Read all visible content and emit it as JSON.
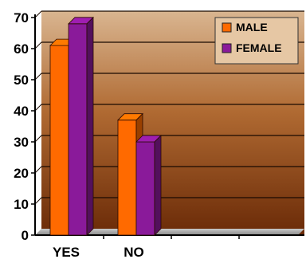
{
  "chart_data": {
    "type": "bar",
    "categories": [
      "YES",
      "NO"
    ],
    "series": [
      {
        "name": "MALE",
        "values": [
          61,
          37
        ],
        "color": "#ff6a00"
      },
      {
        "name": "FEMALE",
        "values": [
          68,
          30
        ],
        "color": "#8a1a9a"
      }
    ],
    "ylim": [
      0,
      70
    ],
    "yticks": [
      0,
      10,
      20,
      30,
      40,
      50,
      60,
      70
    ],
    "grid": true,
    "legend_position": "top-right",
    "title": "",
    "xlabel": "",
    "ylabel": ""
  }
}
